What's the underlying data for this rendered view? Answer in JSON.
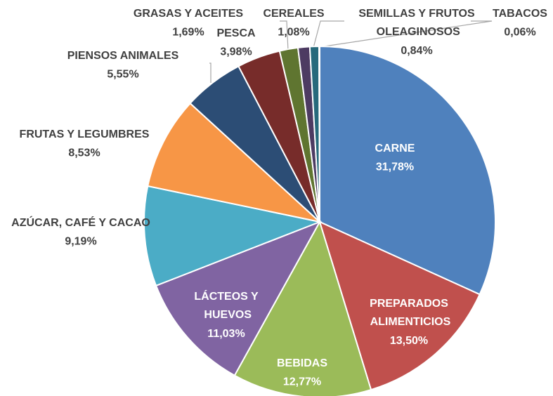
{
  "chart_data": {
    "type": "pie",
    "categories": [
      "CARNE",
      "PREPARADOS ALIMENTICIOS",
      "BEBIDAS",
      "LÁCTEOS Y HUEVOS",
      "AZÚCAR, CAFÉ Y CACAO",
      "FRUTAS Y LEGUMBRES",
      "PIENSOS ANIMALES",
      "PESCA",
      "GRASAS Y ACEITES",
      "CEREALES",
      "SEMILLAS Y FRUTOS OLEAGINOSOS",
      "TABACOS"
    ],
    "values": [
      31.78,
      13.5,
      12.77,
      11.03,
      9.19,
      8.53,
      5.55,
      3.98,
      1.69,
      1.08,
      0.84,
      0.06
    ],
    "value_labels": [
      "31,78%",
      "13,50%",
      "12,77%",
      "11,03%",
      "9,19%",
      "8,53%",
      "5,55%",
      "3,98%",
      "1,69%",
      "1,08%",
      "0,84%",
      "0,06%"
    ],
    "colors": [
      "#4f81bd",
      "#c0504d",
      "#9bbb59",
      "#8064a2",
      "#4bacc6",
      "#f79646",
      "#2c4d75",
      "#772c2a",
      "#5f7530",
      "#4d3b62",
      "#276a7c",
      "#2f8a8f"
    ]
  }
}
